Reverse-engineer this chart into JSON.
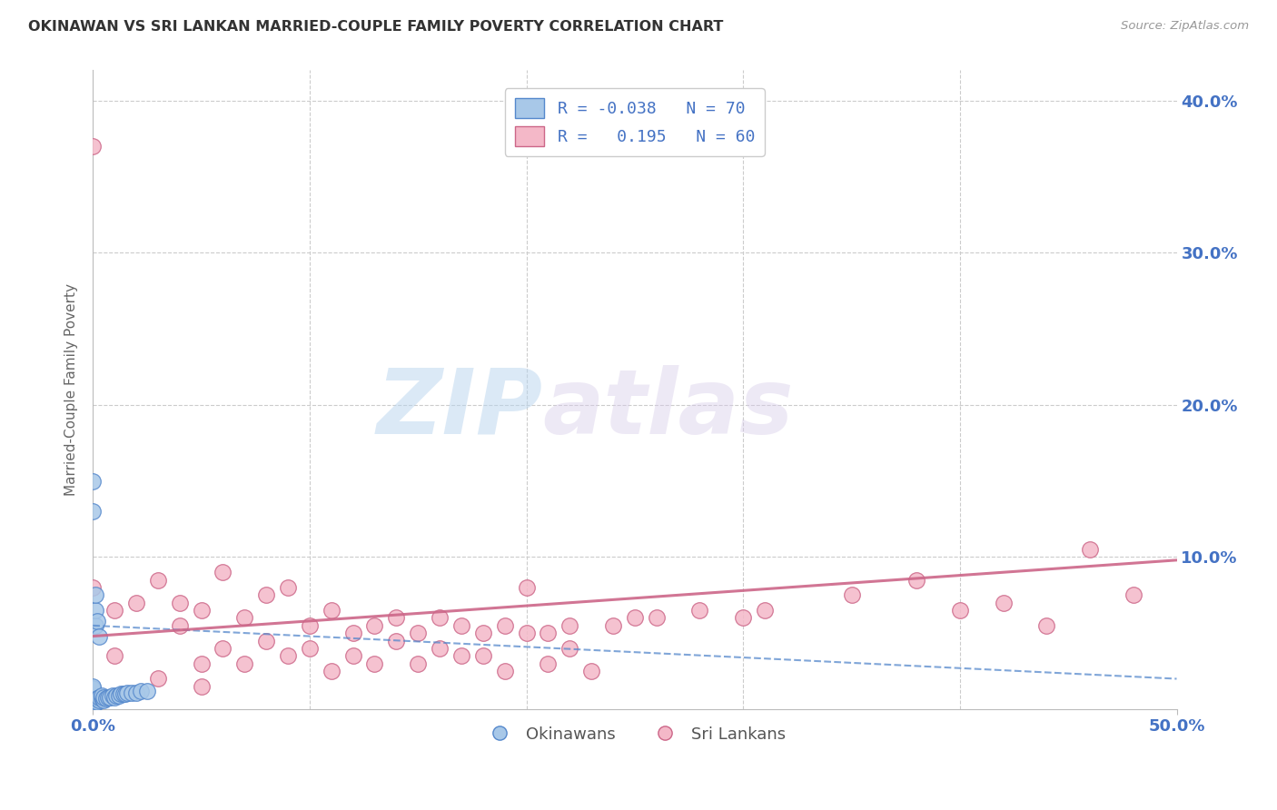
{
  "title": "OKINAWAN VS SRI LANKAN MARRIED-COUPLE FAMILY POVERTY CORRELATION CHART",
  "source": "Source: ZipAtlas.com",
  "ylabel": "Married-Couple Family Poverty",
  "xlim": [
    0.0,
    0.5
  ],
  "ylim": [
    0.0,
    0.42
  ],
  "yticks_right": [
    0.1,
    0.2,
    0.3,
    0.4
  ],
  "ytick_labels_right": [
    "10.0%",
    "20.0%",
    "30.0%",
    "40.0%"
  ],
  "okinawan_color": "#a8c8e8",
  "okinawan_edge": "#5588cc",
  "srilanka_color": "#f4b8c8",
  "srilanka_edge": "#cc6688",
  "R_okinawan": -0.038,
  "N_okinawan": 70,
  "R_srilanka": 0.195,
  "N_srilanka": 60,
  "legend_labels": [
    "Okinawans",
    "Sri Lankans"
  ],
  "watermark_zip": "ZIP",
  "watermark_atlas": "atlas",
  "background_color": "#ffffff",
  "grid_color": "#cccccc",
  "title_color": "#333333",
  "axis_label_color": "#666666",
  "tick_color_blue": "#4472C4",
  "ok_trend_start": 0.055,
  "ok_trend_end": 0.02,
  "sl_trend_start": 0.048,
  "sl_trend_end": 0.098,
  "okinawan_x": [
    0.0,
    0.0,
    0.0,
    0.0,
    0.0,
    0.0,
    0.0,
    0.0,
    0.0,
    0.0,
    0.0,
    0.0,
    0.0,
    0.0,
    0.0,
    0.0,
    0.0,
    0.0,
    0.0,
    0.0,
    0.0,
    0.0,
    0.0,
    0.0,
    0.0,
    0.0,
    0.0,
    0.0,
    0.0,
    0.0,
    0.0,
    0.0,
    0.0,
    0.0,
    0.0,
    0.0,
    0.0,
    0.0,
    0.0,
    0.0,
    0.002,
    0.002,
    0.003,
    0.003,
    0.004,
    0.004,
    0.005,
    0.005,
    0.006,
    0.007,
    0.008,
    0.009,
    0.01,
    0.011,
    0.012,
    0.013,
    0.014,
    0.015,
    0.016,
    0.018,
    0.02,
    0.022,
    0.025,
    0.0,
    0.0,
    0.001,
    0.001,
    0.001,
    0.002,
    0.003
  ],
  "okinawan_y": [
    0.0,
    0.0,
    0.0,
    0.0,
    0.0,
    0.0,
    0.0,
    0.0,
    0.0,
    0.0,
    0.002,
    0.003,
    0.003,
    0.004,
    0.004,
    0.005,
    0.005,
    0.005,
    0.006,
    0.006,
    0.007,
    0.007,
    0.007,
    0.008,
    0.008,
    0.008,
    0.009,
    0.009,
    0.009,
    0.01,
    0.01,
    0.01,
    0.011,
    0.011,
    0.012,
    0.012,
    0.013,
    0.013,
    0.014,
    0.015,
    0.005,
    0.007,
    0.006,
    0.008,
    0.007,
    0.009,
    0.006,
    0.008,
    0.007,
    0.008,
    0.008,
    0.009,
    0.008,
    0.009,
    0.009,
    0.01,
    0.01,
    0.01,
    0.011,
    0.011,
    0.011,
    0.012,
    0.012,
    0.13,
    0.15,
    0.055,
    0.065,
    0.075,
    0.058,
    0.048
  ],
  "srilanka_x": [
    0.0,
    0.0,
    0.01,
    0.02,
    0.03,
    0.04,
    0.05,
    0.06,
    0.07,
    0.08,
    0.09,
    0.1,
    0.11,
    0.12,
    0.13,
    0.14,
    0.15,
    0.16,
    0.17,
    0.18,
    0.19,
    0.2,
    0.21,
    0.22,
    0.24,
    0.25,
    0.26,
    0.28,
    0.3,
    0.31,
    0.04,
    0.06,
    0.08,
    0.1,
    0.12,
    0.14,
    0.16,
    0.18,
    0.2,
    0.22,
    0.05,
    0.07,
    0.09,
    0.11,
    0.13,
    0.15,
    0.17,
    0.19,
    0.21,
    0.23,
    0.35,
    0.38,
    0.4,
    0.42,
    0.44,
    0.46,
    0.48,
    0.01,
    0.03,
    0.05
  ],
  "srilanka_y": [
    0.37,
    0.08,
    0.065,
    0.07,
    0.085,
    0.07,
    0.065,
    0.09,
    0.06,
    0.075,
    0.08,
    0.055,
    0.065,
    0.05,
    0.055,
    0.06,
    0.05,
    0.06,
    0.055,
    0.05,
    0.055,
    0.08,
    0.05,
    0.055,
    0.055,
    0.06,
    0.06,
    0.065,
    0.06,
    0.065,
    0.055,
    0.04,
    0.045,
    0.04,
    0.035,
    0.045,
    0.04,
    0.035,
    0.05,
    0.04,
    0.03,
    0.03,
    0.035,
    0.025,
    0.03,
    0.03,
    0.035,
    0.025,
    0.03,
    0.025,
    0.075,
    0.085,
    0.065,
    0.07,
    0.055,
    0.105,
    0.075,
    0.035,
    0.02,
    0.015
  ],
  "figsize": [
    14.06,
    8.92
  ],
  "dpi": 100
}
